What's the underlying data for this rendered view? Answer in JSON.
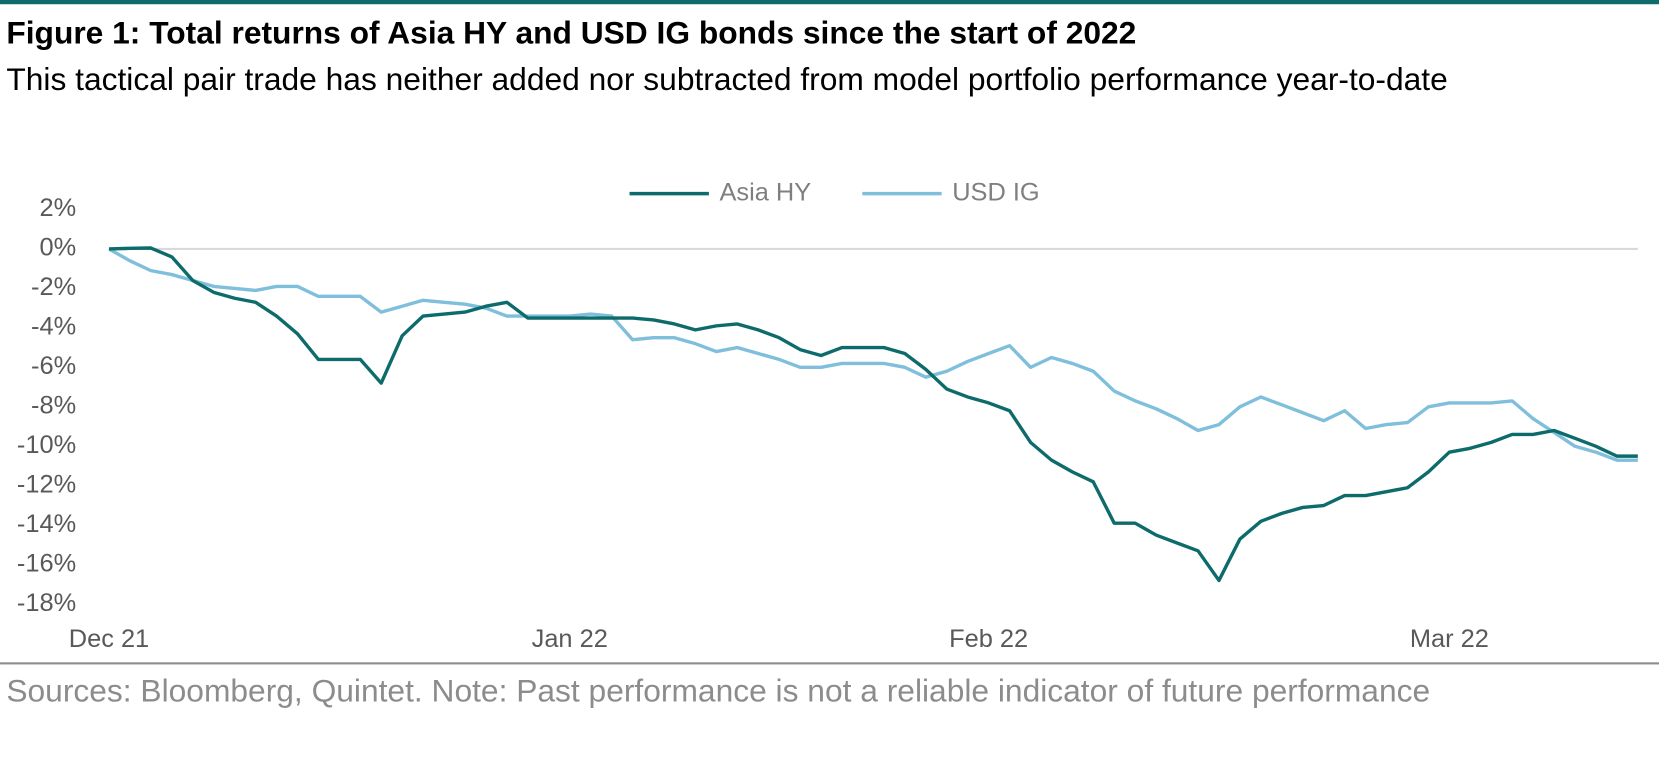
{
  "chart_data": {
    "type": "line",
    "title": "Figure 1: Total returns of Asia HY and USD IG bonds since the start of 2022",
    "subtitle": "This tactical pair trade has neither added nor subtracted from model portfolio performance year-to-date",
    "source": "Sources: Bloomberg, Quintet. Note: Past performance is not a reliable indicator of future performance",
    "categories": [
      "Dec 21",
      null,
      null,
      null,
      null,
      null,
      null,
      null,
      null,
      null,
      null,
      null,
      null,
      null,
      null,
      null,
      null,
      null,
      null,
      null,
      null,
      null,
      "Jan 22",
      null,
      null,
      null,
      null,
      null,
      null,
      null,
      null,
      null,
      null,
      null,
      null,
      null,
      null,
      null,
      null,
      null,
      null,
      null,
      "Feb 22",
      null,
      null,
      null,
      null,
      null,
      null,
      null,
      null,
      null,
      null,
      null,
      null,
      null,
      null,
      null,
      null,
      null,
      null,
      null,
      null,
      null,
      "Mar 22",
      null,
      null,
      null,
      null,
      null,
      null,
      null,
      null,
      null
    ],
    "series": [
      {
        "name": "Asia HY",
        "color": "#0e6b6b",
        "values": [
          0,
          0.03,
          0.05,
          -0.4,
          -1.6,
          -2.2,
          -2.5,
          -2.7,
          -3.4,
          -4.3,
          -5.6,
          -5.6,
          -5.6,
          -6.8,
          -4.4,
          -3.4,
          -3.3,
          -3.2,
          -2.9,
          -2.7,
          -3.5,
          -3.5,
          -3.5,
          -3.5,
          -3.5,
          -3.5,
          -3.6,
          -3.8,
          -4.1,
          -3.9,
          -3.8,
          -4.1,
          -4.5,
          -5.1,
          -5.4,
          -5.0,
          -5.0,
          -5.0,
          -5.3,
          -6.1,
          -7.1,
          -7.5,
          -7.8,
          -8.2,
          -9.8,
          -10.7,
          -11.3,
          -11.8,
          -13.9,
          -13.9,
          -14.5,
          -14.9,
          -15.3,
          -16.8,
          -14.7,
          -13.8,
          -13.4,
          -13.1,
          -13.0,
          -12.5,
          -12.5,
          -12.3,
          -12.1,
          -11.3,
          -10.3,
          -10.1,
          -9.8,
          -9.4,
          -9.4,
          -9.2,
          -9.6,
          -10.0,
          -10.5,
          -10.5
        ]
      },
      {
        "name": "USD IG",
        "color": "#7fbfdc",
        "values": [
          0,
          -0.6,
          -1.1,
          -1.3,
          -1.6,
          -1.9,
          -2.0,
          -2.1,
          -1.9,
          -1.9,
          -2.4,
          -2.4,
          -2.4,
          -3.2,
          -2.9,
          -2.6,
          -2.7,
          -2.8,
          -3.0,
          -3.4,
          -3.4,
          -3.4,
          -3.4,
          -3.3,
          -3.4,
          -4.6,
          -4.5,
          -4.5,
          -4.8,
          -5.2,
          -5.0,
          -5.3,
          -5.6,
          -6.0,
          -6.0,
          -5.8,
          -5.8,
          -5.8,
          -6.0,
          -6.5,
          -6.2,
          -5.7,
          -5.3,
          -4.9,
          -6.0,
          -5.5,
          -5.8,
          -6.2,
          -7.2,
          -7.7,
          -8.1,
          -8.6,
          -9.2,
          -8.9,
          -8.0,
          -7.5,
          -7.9,
          -8.3,
          -8.7,
          -8.2,
          -9.1,
          -8.9,
          -8.8,
          -8.0,
          -7.8,
          -7.8,
          -7.8,
          -7.7,
          -8.6,
          -9.3,
          -10.0,
          -10.3,
          -10.7,
          -10.7
        ]
      }
    ],
    "ylim": [
      -18,
      2
    ],
    "yticks": [
      {
        "value": -18,
        "label": "-18%"
      },
      {
        "value": -16,
        "label": "-16%"
      },
      {
        "value": -14,
        "label": "-14%"
      },
      {
        "value": -12,
        "label": "-12%"
      },
      {
        "value": -10,
        "label": "-10%"
      },
      {
        "value": -8,
        "label": "-8%"
      },
      {
        "value": -6,
        "label": "-6%"
      },
      {
        "value": -4,
        "label": "-4%"
      },
      {
        "value": -2,
        "label": "-2%"
      },
      {
        "value": 0,
        "label": "0%"
      },
      {
        "value": 2,
        "label": "2%"
      }
    ],
    "zero_line": true,
    "legend": "top"
  }
}
